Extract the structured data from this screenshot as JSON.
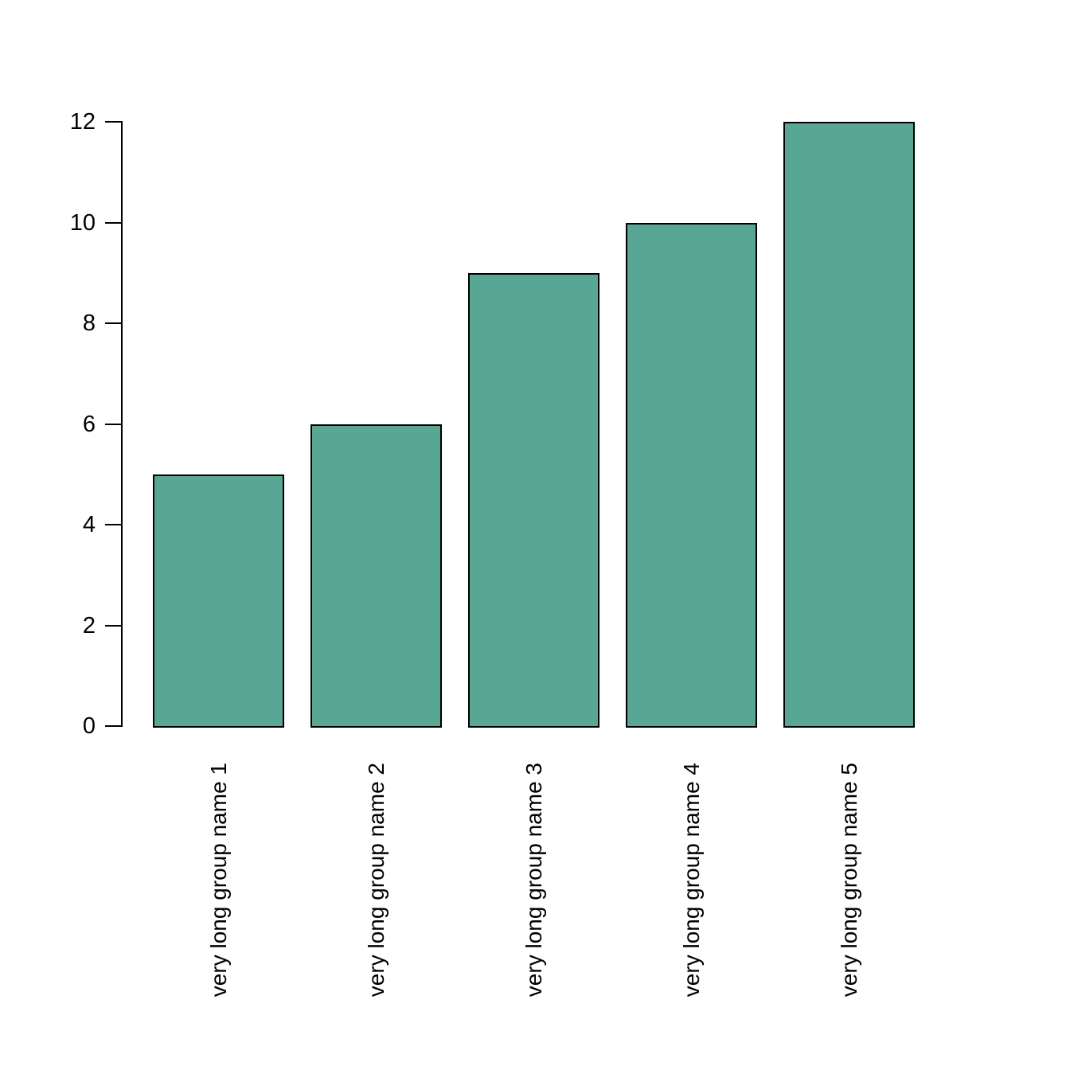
{
  "figure": {
    "background": "#ffffff"
  },
  "chart_data": {
    "type": "bar",
    "categories": [
      "very long group name 1",
      "very long group name 2",
      "very long group name 3",
      "very long group name 4",
      "very long group name 5"
    ],
    "values": [
      5,
      6,
      9,
      10,
      12
    ],
    "title": "",
    "xlabel": "",
    "ylabel": "",
    "ylim": [
      0,
      12
    ],
    "yticks": [
      0,
      2,
      4,
      6,
      8,
      10,
      12
    ],
    "x_tick_label_rotation_deg": 90,
    "grid": false,
    "legend_position": "none",
    "bar_fill": "#58a794",
    "bar_border": "#000000",
    "axis_color": "#000000",
    "text_color": "#000000"
  }
}
